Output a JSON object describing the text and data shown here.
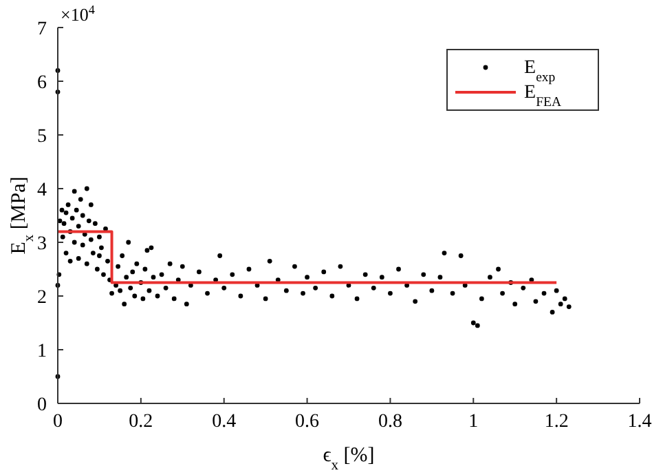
{
  "chart_data": {
    "type": "scatter",
    "xlabel": "ϵ$_{x}$ [%]",
    "ylabel": "E$_{x}$ [MPa]",
    "annotations": [
      "×10$^{4}$"
    ],
    "xlim": [
      0,
      1.4
    ],
    "xticks": [
      0,
      0.2,
      0.4,
      0.6,
      0.8,
      1,
      1.2,
      1.4
    ],
    "ylim": [
      0,
      7
    ],
    "yticks": [
      0,
      1,
      2,
      3,
      4,
      5,
      6,
      7
    ],
    "legend": "top right",
    "series": [
      {
        "name": "E$_{exp}$",
        "color": "#000000",
        "marker": "circle",
        "x": [
          0,
          0,
          0,
          0,
          0.003,
          0.005,
          0.01,
          0.012,
          0.015,
          0.02,
          0.02,
          0.025,
          0.03,
          0.03,
          0.035,
          0.04,
          0.04,
          0.045,
          0.05,
          0.05,
          0.055,
          0.06,
          0.06,
          0.065,
          0.07,
          0.07,
          0.075,
          0.08,
          0.08,
          0.085,
          0.09,
          0.095,
          0.1,
          0.1,
          0.105,
          0.11,
          0.115,
          0.12,
          0.125,
          0.13,
          0.14,
          0.145,
          0.15,
          0.155,
          0.16,
          0.165,
          0.17,
          0.175,
          0.18,
          0.185,
          0.19,
          0.2,
          0.205,
          0.21,
          0.215,
          0.22,
          0.225,
          0.23,
          0.24,
          0.25,
          0.26,
          0.27,
          0.28,
          0.29,
          0.3,
          0.31,
          0.32,
          0.34,
          0.36,
          0.38,
          0.39,
          0.4,
          0.42,
          0.44,
          0.46,
          0.48,
          0.5,
          0.51,
          0.53,
          0.55,
          0.57,
          0.59,
          0.6,
          0.62,
          0.64,
          0.66,
          0.68,
          0.7,
          0.72,
          0.74,
          0.76,
          0.78,
          0.8,
          0.82,
          0.84,
          0.86,
          0.88,
          0.9,
          0.92,
          0.93,
          0.95,
          0.97,
          0.98,
          1,
          1.01,
          1.02,
          1.04,
          1.06,
          1.07,
          1.09,
          1.1,
          1.12,
          1.14,
          1.15,
          1.17,
          1.19,
          1.2,
          1.21,
          1.22,
          1.23
        ],
        "values": [
          6.2,
          5.8,
          0.5,
          2.2,
          2.4,
          3.4,
          3.6,
          3.1,
          3.35,
          3.55,
          2.8,
          3.7,
          3.2,
          2.65,
          3.45,
          3.95,
          3,
          3.6,
          3.3,
          2.7,
          3.8,
          3.5,
          2.95,
          3.15,
          4,
          2.6,
          3.4,
          3.7,
          3.05,
          2.8,
          3.35,
          2.5,
          3.1,
          2.75,
          2.9,
          2.4,
          3.25,
          2.65,
          2.3,
          2.05,
          2.2,
          2.55,
          2.1,
          2.75,
          1.85,
          2.35,
          3,
          2.15,
          2.45,
          2,
          2.6,
          2.25,
          1.95,
          2.5,
          2.85,
          2.1,
          2.9,
          2.35,
          2,
          2.4,
          2.15,
          2.6,
          1.95,
          2.3,
          2.55,
          1.85,
          2.2,
          2.45,
          2.05,
          2.3,
          2.75,
          2.15,
          2.4,
          2,
          2.5,
          2.2,
          1.95,
          2.65,
          2.3,
          2.1,
          2.55,
          2.05,
          2.35,
          2.15,
          2.45,
          2,
          2.55,
          2.2,
          1.95,
          2.4,
          2.15,
          2.35,
          2.05,
          2.5,
          2.2,
          1.9,
          2.4,
          2.1,
          2.35,
          2.8,
          2.05,
          2.75,
          2.2,
          1.5,
          1.45,
          1.95,
          2.35,
          2.5,
          2.05,
          2.25,
          1.85,
          2.15,
          2.3,
          1.9,
          2.05,
          1.7,
          2.1,
          1.85,
          1.95,
          1.8
        ]
      },
      {
        "name": "E$_{FEA}$",
        "type": "line",
        "color": "#e8312f",
        "x": [
          0,
          0.13,
          0.13,
          1.2
        ],
        "values": [
          3.2,
          3.2,
          2.25,
          2.25
        ]
      }
    ]
  }
}
